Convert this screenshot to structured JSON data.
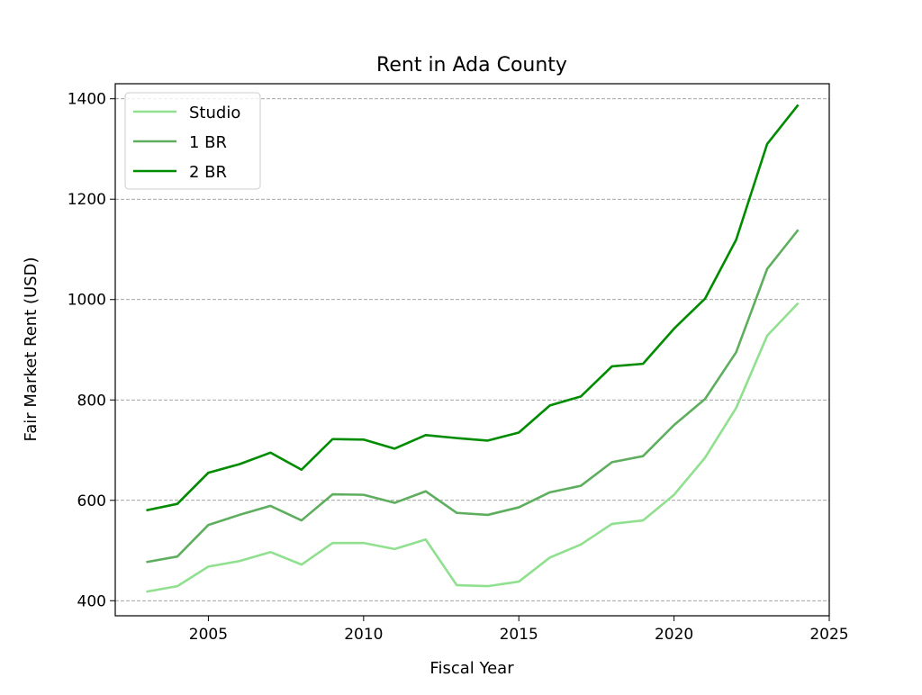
{
  "chart_data": {
    "type": "line",
    "title": "Rent in Ada County",
    "xlabel": "Fiscal Year",
    "ylabel": "Fair Market Rent (USD)",
    "xlim": [
      2002,
      2025
    ],
    "ylim": [
      370,
      1430
    ],
    "xticks": [
      2005,
      2010,
      2015,
      2020,
      2025
    ],
    "yticks": [
      400,
      600,
      800,
      1000,
      1200,
      1400
    ],
    "grid": "horizontal dashed",
    "legend_position": "top-left",
    "x": [
      2003,
      2004,
      2005,
      2006,
      2007,
      2008,
      2009,
      2010,
      2011,
      2012,
      2013,
      2014,
      2015,
      2016,
      2017,
      2018,
      2019,
      2020,
      2021,
      2022,
      2023,
      2024
    ],
    "series": [
      {
        "name": "Studio",
        "color": "#90e090",
        "values": [
          418,
          429,
          468,
          479,
          497,
          472,
          515,
          515,
          503,
          522,
          431,
          429,
          438,
          486,
          512,
          553,
          560,
          611,
          685,
          784,
          928,
          993
        ]
      },
      {
        "name": "1 BR",
        "color": "#5fae5f",
        "values": [
          477,
          488,
          551,
          571,
          589,
          560,
          612,
          611,
          595,
          618,
          575,
          571,
          586,
          616,
          629,
          676,
          688,
          750,
          802,
          895,
          1061,
          1139
        ]
      },
      {
        "name": "2 BR",
        "color": "#008c00",
        "values": [
          580,
          593,
          655,
          672,
          695,
          661,
          722,
          721,
          703,
          730,
          724,
          719,
          735,
          789,
          807,
          867,
          872,
          942,
          1002,
          1119,
          1310,
          1388
        ]
      }
    ]
  }
}
